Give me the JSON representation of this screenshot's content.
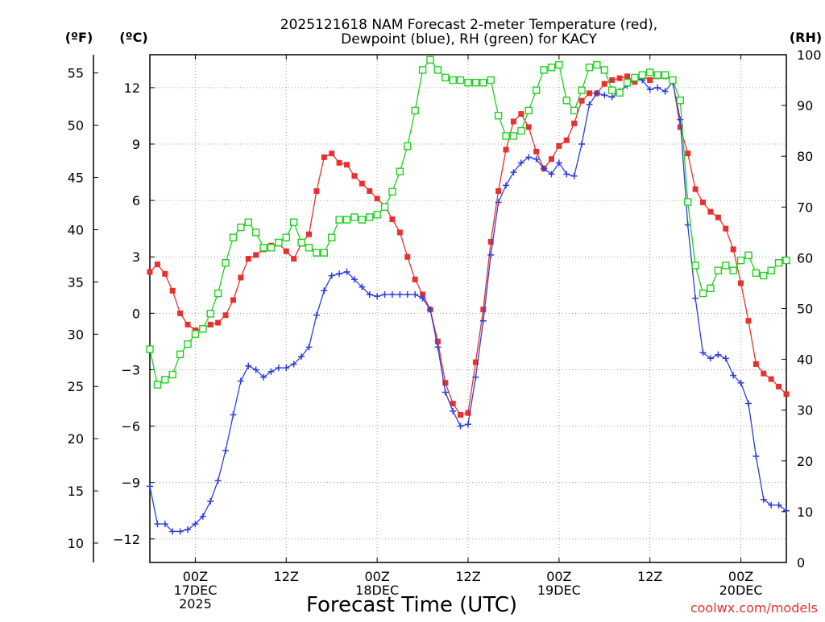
{
  "chart_data": {
    "type": "line",
    "title_line1": "2025121618 NAM Forecast 2-meter Temperature (red),",
    "title_line2": "Dewpoint (blue), RH (green) for KACY",
    "xlabel": "Forecast Time (UTC)",
    "credit": "coolwx.com/models",
    "units": {
      "fahrenheit": "(ºF)",
      "celsius": "(ºC)",
      "rh": "(RH)"
    },
    "x_range_hours": [
      0,
      84
    ],
    "x_ticks": [
      {
        "hour": 6,
        "lines": [
          "00Z",
          "17DEC",
          "2025"
        ]
      },
      {
        "hour": 18,
        "lines": [
          "12Z"
        ]
      },
      {
        "hour": 30,
        "lines": [
          "00Z",
          "18DEC"
        ]
      },
      {
        "hour": 42,
        "lines": [
          "12Z"
        ]
      },
      {
        "hour": 54,
        "lines": [
          "00Z",
          "19DEC"
        ]
      },
      {
        "hour": 66,
        "lines": [
          "12Z"
        ]
      },
      {
        "hour": 78,
        "lines": [
          "00Z",
          "20DEC"
        ]
      }
    ],
    "y_celsius": {
      "range": [
        -13.25,
        13.75
      ],
      "ticks": [
        -12,
        -9,
        -6,
        -3,
        0,
        3,
        6,
        9,
        12
      ],
      "labels": [
        "−12",
        "−9",
        "−6",
        "−3",
        "0",
        "3",
        "6",
        "9",
        "12"
      ]
    },
    "y_fahrenheit": {
      "ticks": [
        10,
        15,
        20,
        25,
        30,
        35,
        40,
        45,
        50,
        55
      ],
      "labels": [
        "10",
        "15",
        "20",
        "25",
        "30",
        "35",
        "40",
        "45",
        "50",
        "55"
      ]
    },
    "y_rh": {
      "range": [
        0,
        100
      ],
      "ticks": [
        0,
        10,
        20,
        30,
        40,
        50,
        60,
        70,
        80,
        90,
        100
      ],
      "labels": [
        "0",
        "10",
        "20",
        "30",
        "40",
        "50",
        "60",
        "70",
        "80",
        "90",
        "100"
      ]
    },
    "series": [
      {
        "name": "Temperature",
        "axis": "celsius",
        "color": "#e8312f",
        "marker": "filled-square",
        "x": [
          0,
          1,
          2,
          3,
          4,
          5,
          6,
          7,
          8,
          9,
          10,
          11,
          12,
          13,
          14,
          15,
          16,
          17,
          18,
          19,
          20,
          21,
          22,
          23,
          24,
          25,
          26,
          27,
          28,
          29,
          30,
          31,
          32,
          33,
          34,
          35,
          36,
          37,
          38,
          39,
          40,
          41,
          42,
          43,
          44,
          45,
          46,
          47,
          48,
          49,
          50,
          51,
          52,
          53,
          54,
          55,
          56,
          57,
          58,
          59,
          60,
          61,
          62,
          63,
          64,
          65,
          66,
          67,
          68,
          69,
          70,
          71,
          72,
          73,
          74,
          75,
          76,
          77,
          78,
          79,
          80,
          81,
          82,
          83,
          84
        ],
        "values": [
          2.2,
          2.6,
          2.1,
          1.2,
          0,
          -0.6,
          -0.9,
          -0.8,
          -0.6,
          -0.5,
          -0.1,
          0.7,
          1.9,
          2.9,
          3.1,
          3.4,
          3.6,
          3.7,
          3.3,
          2.9,
          3.7,
          4.2,
          6.5,
          8.3,
          8.5,
          8.0,
          7.9,
          7.3,
          6.9,
          6.5,
          6.1,
          5.7,
          5.0,
          4.3,
          3.0,
          1.8,
          1.0,
          0.2,
          -1.5,
          -3.7,
          -4.8,
          -5.4,
          -5.3,
          -2.6,
          0.2,
          3.8,
          6.5,
          8.7,
          10.2,
          10.6,
          9.9,
          8.6,
          7.7,
          8.2,
          8.9,
          9.2,
          10.1,
          11.3,
          11.7,
          11.7,
          12.2,
          12.4,
          12.5,
          12.6,
          12.3,
          12.6,
          12.4,
          12.6,
          12.6,
          12.4,
          9.9,
          8.5,
          6.6,
          5.9,
          5.4,
          5.1,
          4.5,
          3.4,
          1.6,
          -0.4,
          -2.7,
          -3.2,
          -3.5,
          -3.9,
          -4.3
        ]
      },
      {
        "name": "Dewpoint",
        "axis": "celsius",
        "color": "#2d3ee0",
        "marker": "plus",
        "x": [
          0,
          1,
          2,
          3,
          4,
          5,
          6,
          7,
          8,
          9,
          10,
          11,
          12,
          13,
          14,
          15,
          16,
          17,
          18,
          19,
          20,
          21,
          22,
          23,
          24,
          25,
          26,
          27,
          28,
          29,
          30,
          31,
          32,
          33,
          34,
          35,
          36,
          37,
          38,
          39,
          40,
          41,
          42,
          43,
          44,
          45,
          46,
          47,
          48,
          49,
          50,
          51,
          52,
          53,
          54,
          55,
          56,
          57,
          58,
          59,
          60,
          61,
          62,
          63,
          64,
          65,
          66,
          67,
          68,
          69,
          70,
          71,
          72,
          73,
          74,
          75,
          76,
          77,
          78,
          79,
          80,
          81,
          82,
          83,
          84
        ],
        "values": [
          -9.2,
          -11.2,
          -11.2,
          -11.6,
          -11.6,
          -11.5,
          -11.2,
          -10.8,
          -10.0,
          -8.9,
          -7.3,
          -5.4,
          -3.6,
          -2.8,
          -3.0,
          -3.4,
          -3.1,
          -2.9,
          -2.9,
          -2.7,
          -2.3,
          -1.8,
          -0.1,
          1.2,
          2.0,
          2.1,
          2.2,
          1.8,
          1.4,
          1.0,
          0.9,
          1.0,
          1.0,
          1.0,
          1.0,
          1.0,
          0.8,
          0.2,
          -1.8,
          -4.2,
          -5.2,
          -6.0,
          -5.9,
          -3.4,
          -0.4,
          3.1,
          5.9,
          6.8,
          7.5,
          8.0,
          8.3,
          8.2,
          7.7,
          7.4,
          8.0,
          7.4,
          7.3,
          9.0,
          11.1,
          11.7,
          11.6,
          11.5,
          11.8,
          12.1,
          12.5,
          12.4,
          11.9,
          12.0,
          11.8,
          12.3,
          10.3,
          4.7,
          0.8,
          -2.1,
          -2.4,
          -2.2,
          -2.4,
          -3.3,
          -3.7,
          -4.8,
          -7.6,
          -9.9,
          -10.2,
          -10.2,
          -10.5
        ]
      },
      {
        "name": "RH",
        "axis": "rh",
        "color": "#1ed21e",
        "marker": "open-square",
        "x": [
          0,
          1,
          2,
          3,
          4,
          5,
          6,
          7,
          8,
          9,
          10,
          11,
          12,
          13,
          14,
          15,
          16,
          17,
          18,
          19,
          20,
          21,
          22,
          23,
          24,
          25,
          26,
          27,
          28,
          29,
          30,
          31,
          32,
          33,
          34,
          35,
          36,
          37,
          38,
          39,
          40,
          41,
          42,
          43,
          44,
          45,
          46,
          47,
          48,
          49,
          50,
          51,
          52,
          53,
          54,
          55,
          56,
          57,
          58,
          59,
          60,
          61,
          62,
          63,
          64,
          65,
          66,
          67,
          68,
          69,
          70,
          71,
          72,
          73,
          74,
          75,
          76,
          77,
          78,
          79,
          80,
          81,
          82,
          83,
          84
        ],
        "values": [
          42,
          35,
          36,
          37,
          41,
          43,
          45,
          46,
          49,
          53,
          59,
          64,
          66,
          67,
          65,
          62,
          62,
          63,
          64,
          67,
          63,
          62,
          61,
          61,
          64,
          67.5,
          67.5,
          68,
          67.5,
          68,
          68.5,
          70,
          73,
          77,
          82,
          89,
          97,
          99,
          97,
          95.5,
          95,
          95,
          94.5,
          94.5,
          94.5,
          95,
          88,
          84,
          84,
          85,
          89,
          93,
          97,
          97.5,
          98,
          91,
          89,
          93,
          97.5,
          98,
          97,
          93,
          92.5,
          94.5,
          95.5,
          96,
          96.5,
          96,
          96,
          95,
          91,
          71,
          58.5,
          53,
          54,
          57.5,
          58.5,
          57.5,
          59.5,
          60.5,
          57,
          56.5,
          57.5,
          59,
          59.5
        ]
      }
    ]
  }
}
